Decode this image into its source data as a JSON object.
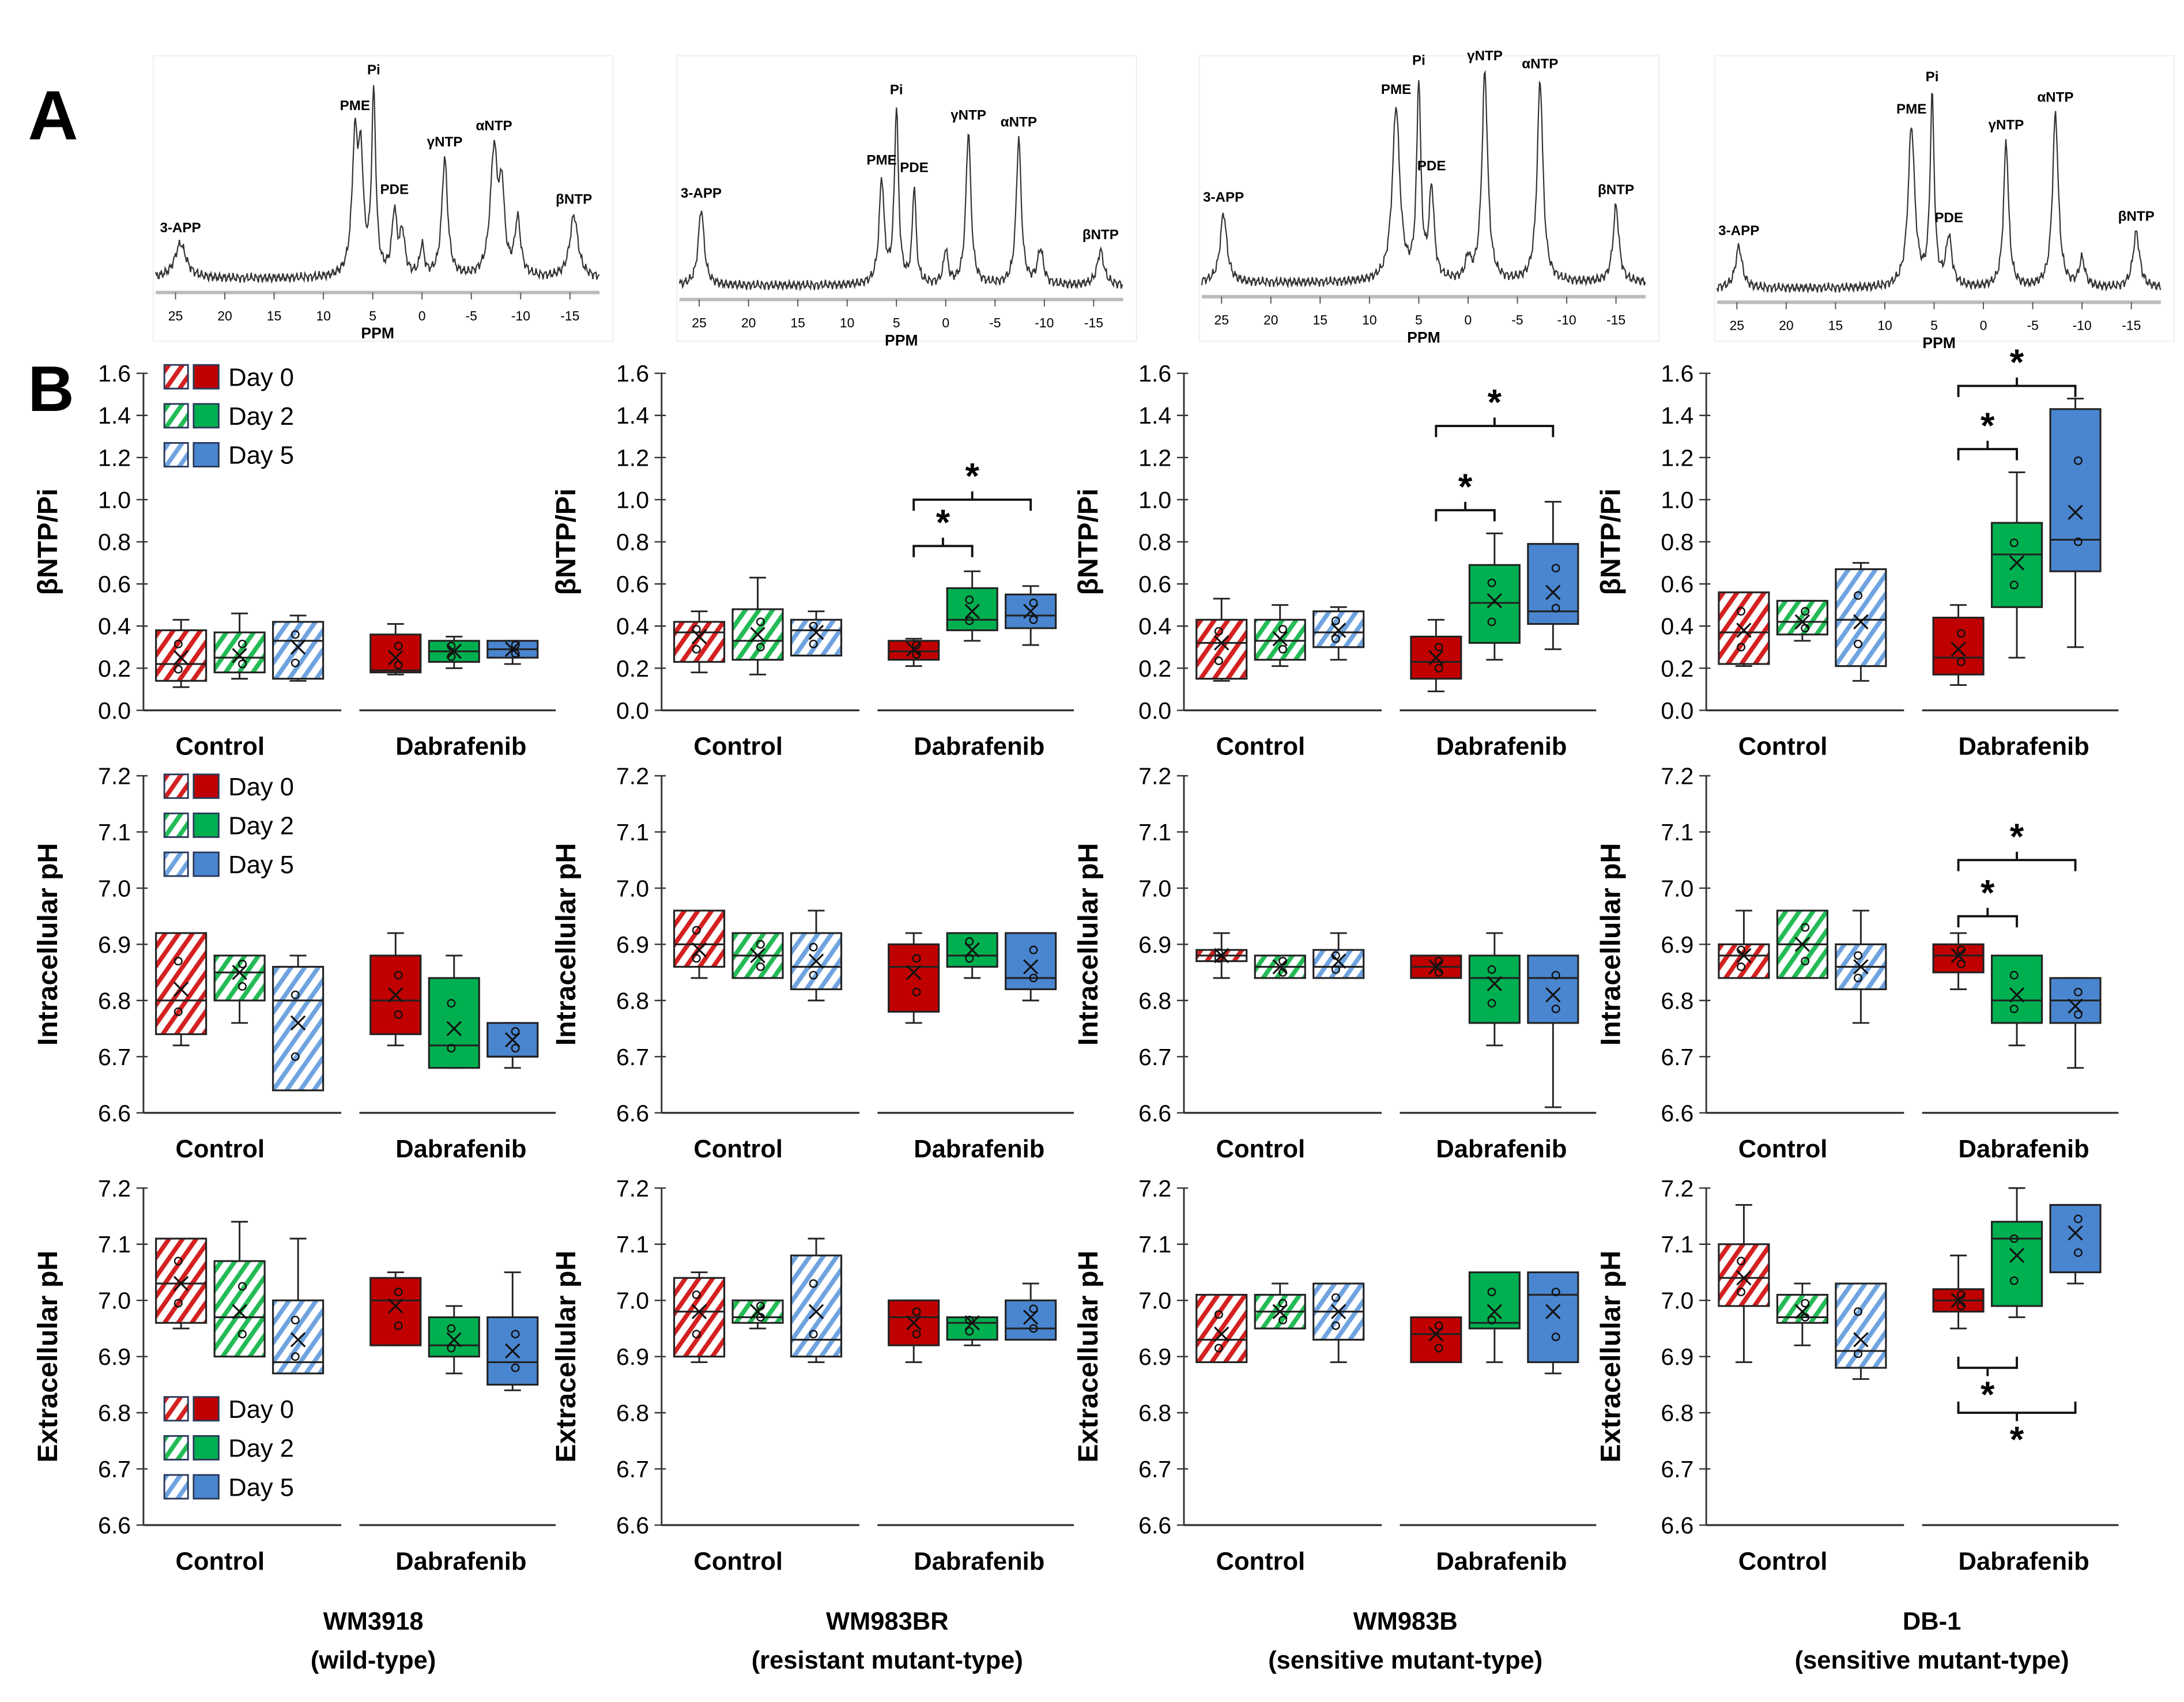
{
  "panel_labels": {
    "a": "A",
    "b": "B"
  },
  "legend": [
    {
      "label": "Day 0",
      "color": "#c00000",
      "hatch": "#d42020"
    },
    {
      "label": "Day 2",
      "color": "#00b050",
      "hatch": "#22bb55"
    },
    {
      "label": "Day 5",
      "color": "#4a86d0",
      "hatch": "#6fa3e0"
    }
  ],
  "groups": [
    "Control",
    "Dabrafenib"
  ],
  "columns": [
    {
      "name": "WM3918",
      "subtitle": "(wild-type)"
    },
    {
      "name": "WM983BR",
      "subtitle": "(resistant mutant-type)"
    },
    {
      "name": "WM983B",
      "subtitle": "(sensitive mutant-type)"
    },
    {
      "name": "DB-1",
      "subtitle": "(sensitive mutant-type)"
    }
  ],
  "spectra": [
    {
      "xlabel": "PPM",
      "ticks": [
        25,
        20,
        15,
        10,
        5,
        0,
        -5,
        -10,
        -15
      ],
      "peaks": [
        {
          "label": "3-APP",
          "ppm": 24.5,
          "h": 25,
          "w": 0.7
        },
        {
          "label": "PME",
          "ppm": 6.8,
          "h": 95,
          "w": 0.35
        },
        {
          "label": "",
          "ppm": 6.2,
          "h": 75,
          "w": 0.3
        },
        {
          "label": "Pi",
          "ppm": 4.9,
          "h": 130,
          "w": 0.25
        },
        {
          "label": "PDE",
          "ppm": 2.8,
          "h": 45,
          "w": 0.3
        },
        {
          "label": "",
          "ppm": 2.0,
          "h": 30,
          "w": 0.3
        },
        {
          "label": "",
          "ppm": 0,
          "h": 22,
          "w": 0.25
        },
        {
          "label": "γNTP",
          "ppm": -2.3,
          "h": 85,
          "w": 0.35
        },
        {
          "label": "αNTP",
          "ppm": -7.3,
          "h": 90,
          "w": 0.45
        },
        {
          "label": "",
          "ppm": -8.1,
          "h": 55,
          "w": 0.3
        },
        {
          "label": "",
          "ppm": -9.7,
          "h": 40,
          "w": 0.35
        },
        {
          "label": "βNTP",
          "ppm": -15.4,
          "h": 45,
          "w": 0.5
        }
      ]
    },
    {
      "xlabel": "PPM",
      "ticks": [
        25,
        20,
        15,
        10,
        5,
        0,
        -5,
        -10,
        -15
      ],
      "peaks": [
        {
          "label": "3-APP",
          "ppm": 24.8,
          "h": 55,
          "w": 0.35
        },
        {
          "label": "PME",
          "ppm": 6.5,
          "h": 75,
          "w": 0.3
        },
        {
          "label": "Pi",
          "ppm": 5.0,
          "h": 125,
          "w": 0.25
        },
        {
          "label": "PDE",
          "ppm": 3.2,
          "h": 70,
          "w": 0.22
        },
        {
          "label": "",
          "ppm": 0,
          "h": 25,
          "w": 0.25
        },
        {
          "label": "γNTP",
          "ppm": -2.3,
          "h": 110,
          "w": 0.3
        },
        {
          "label": "αNTP",
          "ppm": -7.4,
          "h": 105,
          "w": 0.3
        },
        {
          "label": "",
          "ppm": -9.6,
          "h": 25,
          "w": 0.35
        },
        {
          "label": "βNTP",
          "ppm": -15.7,
          "h": 25,
          "w": 0.4
        }
      ]
    },
    {
      "xlabel": "PPM",
      "ticks": [
        25,
        20,
        15,
        10,
        5,
        0,
        -5,
        -10,
        -15
      ],
      "peaks": [
        {
          "label": "3-APP",
          "ppm": 24.8,
          "h": 50,
          "w": 0.4
        },
        {
          "label": "PME",
          "ppm": 7.3,
          "h": 125,
          "w": 0.45
        },
        {
          "label": "Pi",
          "ppm": 5.0,
          "h": 140,
          "w": 0.25
        },
        {
          "label": "PDE",
          "ppm": 3.7,
          "h": 65,
          "w": 0.3
        },
        {
          "label": "",
          "ppm": 0,
          "h": 15,
          "w": 0.3
        },
        {
          "label": "γNTP",
          "ppm": -1.7,
          "h": 150,
          "w": 0.35
        },
        {
          "label": "αNTP",
          "ppm": -7.3,
          "h": 145,
          "w": 0.35
        },
        {
          "label": "βNTP",
          "ppm": -15.0,
          "h": 55,
          "w": 0.35
        }
      ]
    },
    {
      "xlabel": "PPM",
      "ticks": [
        25,
        20,
        15,
        10,
        5,
        0,
        -5,
        -10,
        -15
      ],
      "peaks": [
        {
          "label": "3-APP",
          "ppm": 24.8,
          "h": 30,
          "w": 0.4
        },
        {
          "label": "PME",
          "ppm": 7.3,
          "h": 115,
          "w": 0.4
        },
        {
          "label": "Pi",
          "ppm": 5.2,
          "h": 135,
          "w": 0.25
        },
        {
          "label": "PDE",
          "ppm": 3.5,
          "h": 35,
          "w": 0.35
        },
        {
          "label": "γNTP",
          "ppm": -2.3,
          "h": 105,
          "w": 0.3
        },
        {
          "label": "αNTP",
          "ppm": -7.3,
          "h": 125,
          "w": 0.35
        },
        {
          "label": "",
          "ppm": -10,
          "h": 20,
          "w": 0.35
        },
        {
          "label": "βNTP",
          "ppm": -15.5,
          "h": 40,
          "w": 0.4
        }
      ]
    }
  ],
  "chart_data": [
    {
      "type": "box",
      "ylabel": "βNTP/Pi",
      "ylim": [
        0,
        1.6
      ],
      "ystep": 0.2,
      "decimals": 1,
      "box_fields": [
        "whisker_low",
        "q1",
        "median",
        "q3",
        "whisker_high",
        "mean"
      ],
      "data": [
        [
          [
            0.11,
            0.14,
            0.22,
            0.38,
            0.43,
            0.25
          ],
          [
            0.15,
            0.18,
            0.25,
            0.37,
            0.46,
            0.26
          ],
          [
            0.14,
            0.15,
            0.33,
            0.42,
            0.45,
            0.3
          ],
          [
            0.17,
            0.18,
            0.19,
            0.36,
            0.41,
            0.25
          ],
          [
            0.2,
            0.23,
            0.28,
            0.33,
            0.35,
            0.28
          ],
          [
            0.22,
            0.25,
            0.29,
            0.33,
            0.33,
            0.29
          ]
        ],
        [
          [
            0.18,
            0.23,
            0.37,
            0.42,
            0.47,
            0.35
          ],
          [
            0.17,
            0.24,
            0.33,
            0.48,
            0.63,
            0.36
          ],
          [
            0.26,
            0.26,
            0.38,
            0.43,
            0.47,
            0.37
          ],
          [
            0.21,
            0.24,
            0.28,
            0.33,
            0.34,
            0.29
          ],
          [
            0.33,
            0.38,
            0.43,
            0.58,
            0.66,
            0.47
          ],
          [
            0.31,
            0.39,
            0.45,
            0.55,
            0.59,
            0.47
          ]
        ],
        [
          [
            0.14,
            0.15,
            0.32,
            0.43,
            0.53,
            0.32
          ],
          [
            0.21,
            0.24,
            0.33,
            0.43,
            0.5,
            0.34
          ],
          [
            0.24,
            0.3,
            0.37,
            0.47,
            0.49,
            0.38
          ],
          [
            0.09,
            0.15,
            0.23,
            0.35,
            0.43,
            0.25
          ],
          [
            0.24,
            0.32,
            0.51,
            0.69,
            0.84,
            0.52
          ],
          [
            0.29,
            0.41,
            0.47,
            0.79,
            0.99,
            0.56
          ]
        ],
        [
          [
            0.21,
            0.22,
            0.37,
            0.56,
            0.56,
            0.38
          ],
          [
            0.33,
            0.36,
            0.42,
            0.52,
            0.52,
            0.42
          ],
          [
            0.14,
            0.21,
            0.43,
            0.67,
            0.7,
            0.42
          ],
          [
            0.12,
            0.17,
            0.25,
            0.44,
            0.5,
            0.29
          ],
          [
            0.25,
            0.49,
            0.74,
            0.89,
            1.13,
            0.7
          ],
          [
            0.3,
            0.66,
            0.81,
            1.43,
            1.48,
            0.94
          ]
        ]
      ],
      "significance": [
        {
          "col": 1,
          "from": 3,
          "to": 4,
          "level": 0.78,
          "label": "*"
        },
        {
          "col": 1,
          "from": 3,
          "to": 5,
          "level": 1.0,
          "label": "*"
        },
        {
          "col": 2,
          "from": 3,
          "to": 4,
          "level": 0.95,
          "label": "*"
        },
        {
          "col": 2,
          "from": 3,
          "to": 5,
          "level": 1.35,
          "label": "*"
        },
        {
          "col": 3,
          "from": 3,
          "to": 4,
          "level": 1.24,
          "label": "*"
        },
        {
          "col": 3,
          "from": 3,
          "to": 5,
          "level": 1.54,
          "label": "*"
        }
      ]
    },
    {
      "type": "box",
      "ylabel": "Intracellular pH",
      "ylim": [
        6.6,
        7.2
      ],
      "ystep": 0.1,
      "decimals": 1,
      "data": [
        [
          [
            6.72,
            6.74,
            6.8,
            6.92,
            6.92,
            6.82
          ],
          [
            6.76,
            6.8,
            6.85,
            6.88,
            6.88,
            6.85
          ],
          [
            6.64,
            6.64,
            6.8,
            6.86,
            6.88,
            6.76
          ],
          [
            6.72,
            6.74,
            6.8,
            6.88,
            6.92,
            6.81
          ],
          [
            6.68,
            6.68,
            6.72,
            6.84,
            6.88,
            6.75
          ],
          [
            6.68,
            6.7,
            6.7,
            6.76,
            6.76,
            6.73
          ]
        ],
        [
          [
            6.84,
            6.86,
            6.9,
            6.96,
            6.96,
            6.89
          ],
          [
            6.84,
            6.84,
            6.88,
            6.92,
            6.92,
            6.88
          ],
          [
            6.8,
            6.82,
            6.86,
            6.92,
            6.96,
            6.87
          ],
          [
            6.76,
            6.78,
            6.86,
            6.9,
            6.92,
            6.85
          ],
          [
            6.84,
            6.86,
            6.88,
            6.92,
            6.92,
            6.89
          ],
          [
            6.8,
            6.82,
            6.84,
            6.92,
            6.92,
            6.86
          ]
        ],
        [
          [
            6.84,
            6.87,
            6.88,
            6.89,
            6.92,
            6.88
          ],
          [
            6.84,
            6.84,
            6.86,
            6.88,
            6.88,
            6.86
          ],
          [
            6.84,
            6.84,
            6.86,
            6.89,
            6.92,
            6.87
          ],
          [
            6.84,
            6.84,
            6.86,
            6.88,
            6.88,
            6.86
          ],
          [
            6.72,
            6.76,
            6.84,
            6.88,
            6.92,
            6.83
          ],
          [
            6.61,
            6.76,
            6.84,
            6.88,
            6.88,
            6.81
          ]
        ],
        [
          [
            6.84,
            6.84,
            6.88,
            6.9,
            6.96,
            6.88
          ],
          [
            6.84,
            6.84,
            6.9,
            6.96,
            6.96,
            6.9
          ],
          [
            6.76,
            6.82,
            6.86,
            6.9,
            6.96,
            6.86
          ],
          [
            6.82,
            6.85,
            6.88,
            6.9,
            6.92,
            6.88
          ],
          [
            6.72,
            6.76,
            6.8,
            6.88,
            6.88,
            6.81
          ],
          [
            6.68,
            6.76,
            6.8,
            6.84,
            6.84,
            6.79
          ]
        ]
      ],
      "significance": [
        {
          "col": 3,
          "from": 3,
          "to": 4,
          "level": 6.95,
          "label": "*"
        },
        {
          "col": 3,
          "from": 3,
          "to": 5,
          "level": 7.05,
          "label": "*"
        }
      ]
    },
    {
      "type": "box",
      "ylabel": "Extracellular pH",
      "ylim": [
        6.6,
        7.2
      ],
      "ystep": 0.1,
      "decimals": 1,
      "data": [
        [
          [
            6.95,
            6.96,
            7.03,
            7.11,
            7.11,
            7.03
          ],
          [
            6.9,
            6.9,
            6.97,
            7.07,
            7.14,
            6.98
          ],
          [
            6.87,
            6.87,
            6.89,
            7.0,
            7.11,
            6.93
          ],
          [
            6.92,
            6.92,
            7.0,
            7.04,
            7.05,
            6.99
          ],
          [
            6.87,
            6.9,
            6.92,
            6.97,
            6.99,
            6.93
          ],
          [
            6.84,
            6.85,
            6.89,
            6.97,
            7.05,
            6.91
          ]
        ],
        [
          [
            6.89,
            6.9,
            6.98,
            7.04,
            7.05,
            6.98
          ],
          [
            6.95,
            6.96,
            6.97,
            7.0,
            7.0,
            6.98
          ],
          [
            6.89,
            6.9,
            6.93,
            7.08,
            7.11,
            6.98
          ],
          [
            6.89,
            6.92,
            6.97,
            7.0,
            7.0,
            6.96
          ],
          [
            6.92,
            6.93,
            6.96,
            6.97,
            6.97,
            6.96
          ],
          [
            6.93,
            6.93,
            6.95,
            7.0,
            7.03,
            6.97
          ]
        ],
        [
          [
            6.89,
            6.89,
            6.93,
            7.01,
            7.01,
            6.94
          ],
          [
            6.95,
            6.95,
            6.98,
            7.01,
            7.03,
            6.98
          ],
          [
            6.89,
            6.93,
            6.98,
            7.03,
            7.03,
            6.98
          ],
          [
            6.89,
            6.89,
            6.94,
            6.97,
            6.97,
            6.94
          ],
          [
            6.89,
            6.95,
            6.96,
            7.05,
            7.05,
            6.98
          ],
          [
            6.87,
            6.89,
            7.01,
            7.05,
            7.05,
            6.98
          ]
        ],
        [
          [
            6.89,
            6.99,
            7.04,
            7.1,
            7.17,
            7.04
          ],
          [
            6.92,
            6.96,
            6.97,
            7.01,
            7.03,
            6.98
          ],
          [
            6.86,
            6.88,
            6.91,
            7.03,
            7.03,
            6.93
          ],
          [
            6.95,
            6.98,
            7.0,
            7.02,
            7.08,
            7.0
          ],
          [
            6.97,
            6.99,
            7.11,
            7.14,
            7.2,
            7.08
          ],
          [
            7.03,
            7.05,
            7.17,
            7.17,
            7.17,
            7.12
          ]
        ]
      ],
      "significance": [
        {
          "col": 3,
          "from": 3,
          "to": 4,
          "level": 6.88,
          "label": "*",
          "below": true
        },
        {
          "col": 3,
          "from": 3,
          "to": 5,
          "level": 6.8,
          "label": "*",
          "below": true
        }
      ]
    }
  ]
}
